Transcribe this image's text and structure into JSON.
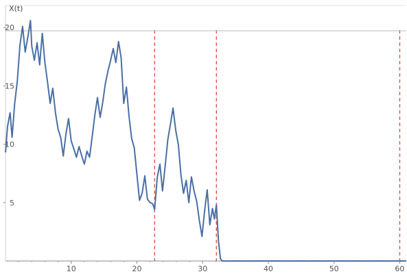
{
  "chart_data": {
    "type": "line",
    "title": "",
    "ylabel": "X(t)",
    "xlabel": "",
    "xlim": [
      0,
      61
    ],
    "ylim": [
      0,
      20.6
    ],
    "x_ticks": [
      10,
      20,
      30,
      40,
      50,
      60
    ],
    "y_ticks": [
      5,
      10,
      15,
      20
    ],
    "grid": false,
    "line_color": "#4a6fa5",
    "vline_color": "#e0524f",
    "vertical_lines": [
      22.7,
      32.1,
      60.0
    ],
    "series": [
      {
        "x": [
          0,
          0.3,
          0.7,
          1.0,
          1.4,
          1.8,
          2.2,
          2.6,
          3.0,
          3.4,
          3.8,
          4.0,
          4.4,
          4.8,
          5.2,
          5.6,
          6.0,
          6.4,
          6.8,
          7.2,
          7.6,
          8.0,
          8.4,
          8.8,
          9.2,
          9.6,
          10.0,
          10.4,
          10.8,
          11.2,
          11.6,
          12.0,
          12.4,
          12.8,
          13.2,
          13.6,
          14.0,
          14.4,
          14.8,
          15.2,
          15.6,
          16.0,
          16.4,
          16.8,
          17.2,
          17.6,
          18.0,
          18.4,
          18.8,
          19.2,
          19.6,
          20.0,
          20.4,
          20.8,
          21.2,
          21.6,
          22.0,
          22.4,
          22.7,
          23.1,
          23.5,
          23.9,
          24.3,
          24.7,
          25.1,
          25.5,
          25.9,
          26.3,
          26.7,
          27.1,
          27.5,
          27.9,
          28.3,
          28.7,
          29.1,
          29.5,
          29.9,
          30.3,
          30.7,
          31.1,
          31.5,
          31.8,
          32.1,
          32.4,
          32.7,
          33.0,
          40.0,
          50.0,
          60.0,
          61.0
        ],
        "y": [
          9.3,
          11.5,
          12.7,
          10.6,
          13.5,
          15.4,
          18.5,
          20.1,
          17.9,
          19.2,
          20.6,
          18.4,
          17.2,
          18.7,
          16.8,
          19.5,
          17.0,
          15.3,
          13.5,
          14.8,
          12.7,
          11.3,
          10.6,
          9.0,
          10.9,
          12.2,
          10.3,
          9.6,
          8.9,
          9.8,
          9.0,
          8.3,
          9.4,
          8.9,
          10.7,
          12.5,
          14.0,
          12.3,
          13.6,
          15.2,
          16.3,
          17.2,
          18.2,
          17.0,
          18.8,
          17.4,
          13.5,
          14.9,
          12.4,
          10.5,
          9.7,
          7.4,
          5.2,
          5.8,
          7.3,
          5.3,
          5.0,
          4.9,
          4.4,
          7.2,
          8.3,
          6.0,
          8.1,
          10.4,
          11.7,
          13.1,
          11.2,
          10.0,
          7.4,
          5.8,
          6.9,
          5.0,
          7.2,
          6.0,
          5.1,
          3.5,
          2.1,
          4.3,
          6.1,
          3.1,
          4.5,
          3.6,
          4.8,
          1.8,
          0.2,
          0.0,
          0.0,
          0.0,
          0.0,
          0.0
        ]
      }
    ]
  }
}
